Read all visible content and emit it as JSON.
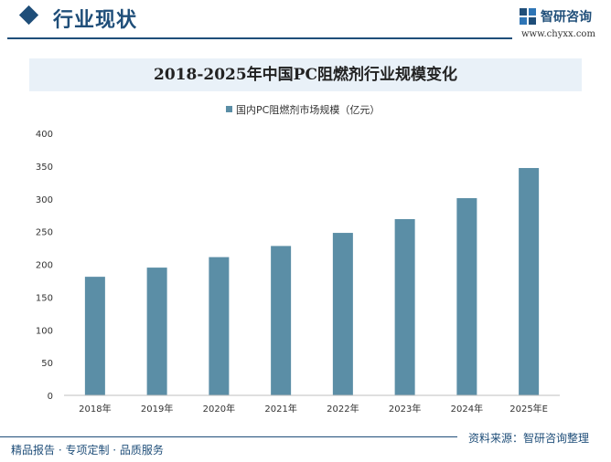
{
  "header": {
    "section_title": "行业现状",
    "brand_name": "智研咨询",
    "brand_url": "www.chyxx.com"
  },
  "chart_data": {
    "type": "bar",
    "title": "2018-2025年中国PC阻燃剂行业规模变化",
    "categories": [
      "2018年",
      "2019年",
      "2020年",
      "2021年",
      "2022年",
      "2023年",
      "2024年",
      "2025年E"
    ],
    "series": [
      {
        "name": "国内PC阻燃剂市场规模（亿元）",
        "values": [
          181,
          195,
          211,
          228,
          248,
          269,
          301,
          347
        ]
      }
    ],
    "y_ticks": [
      0,
      50,
      100,
      150,
      200,
      250,
      300,
      350,
      400
    ],
    "ylim": [
      0,
      400
    ],
    "xlabel": "",
    "ylabel": "",
    "grid": false,
    "legend_position": "top-center",
    "bar_color": "#5b8ea6"
  },
  "footer": {
    "left_text": "精品报告 · 专项定制 · 品质服务",
    "source_text": "资料来源：智研咨询整理"
  }
}
